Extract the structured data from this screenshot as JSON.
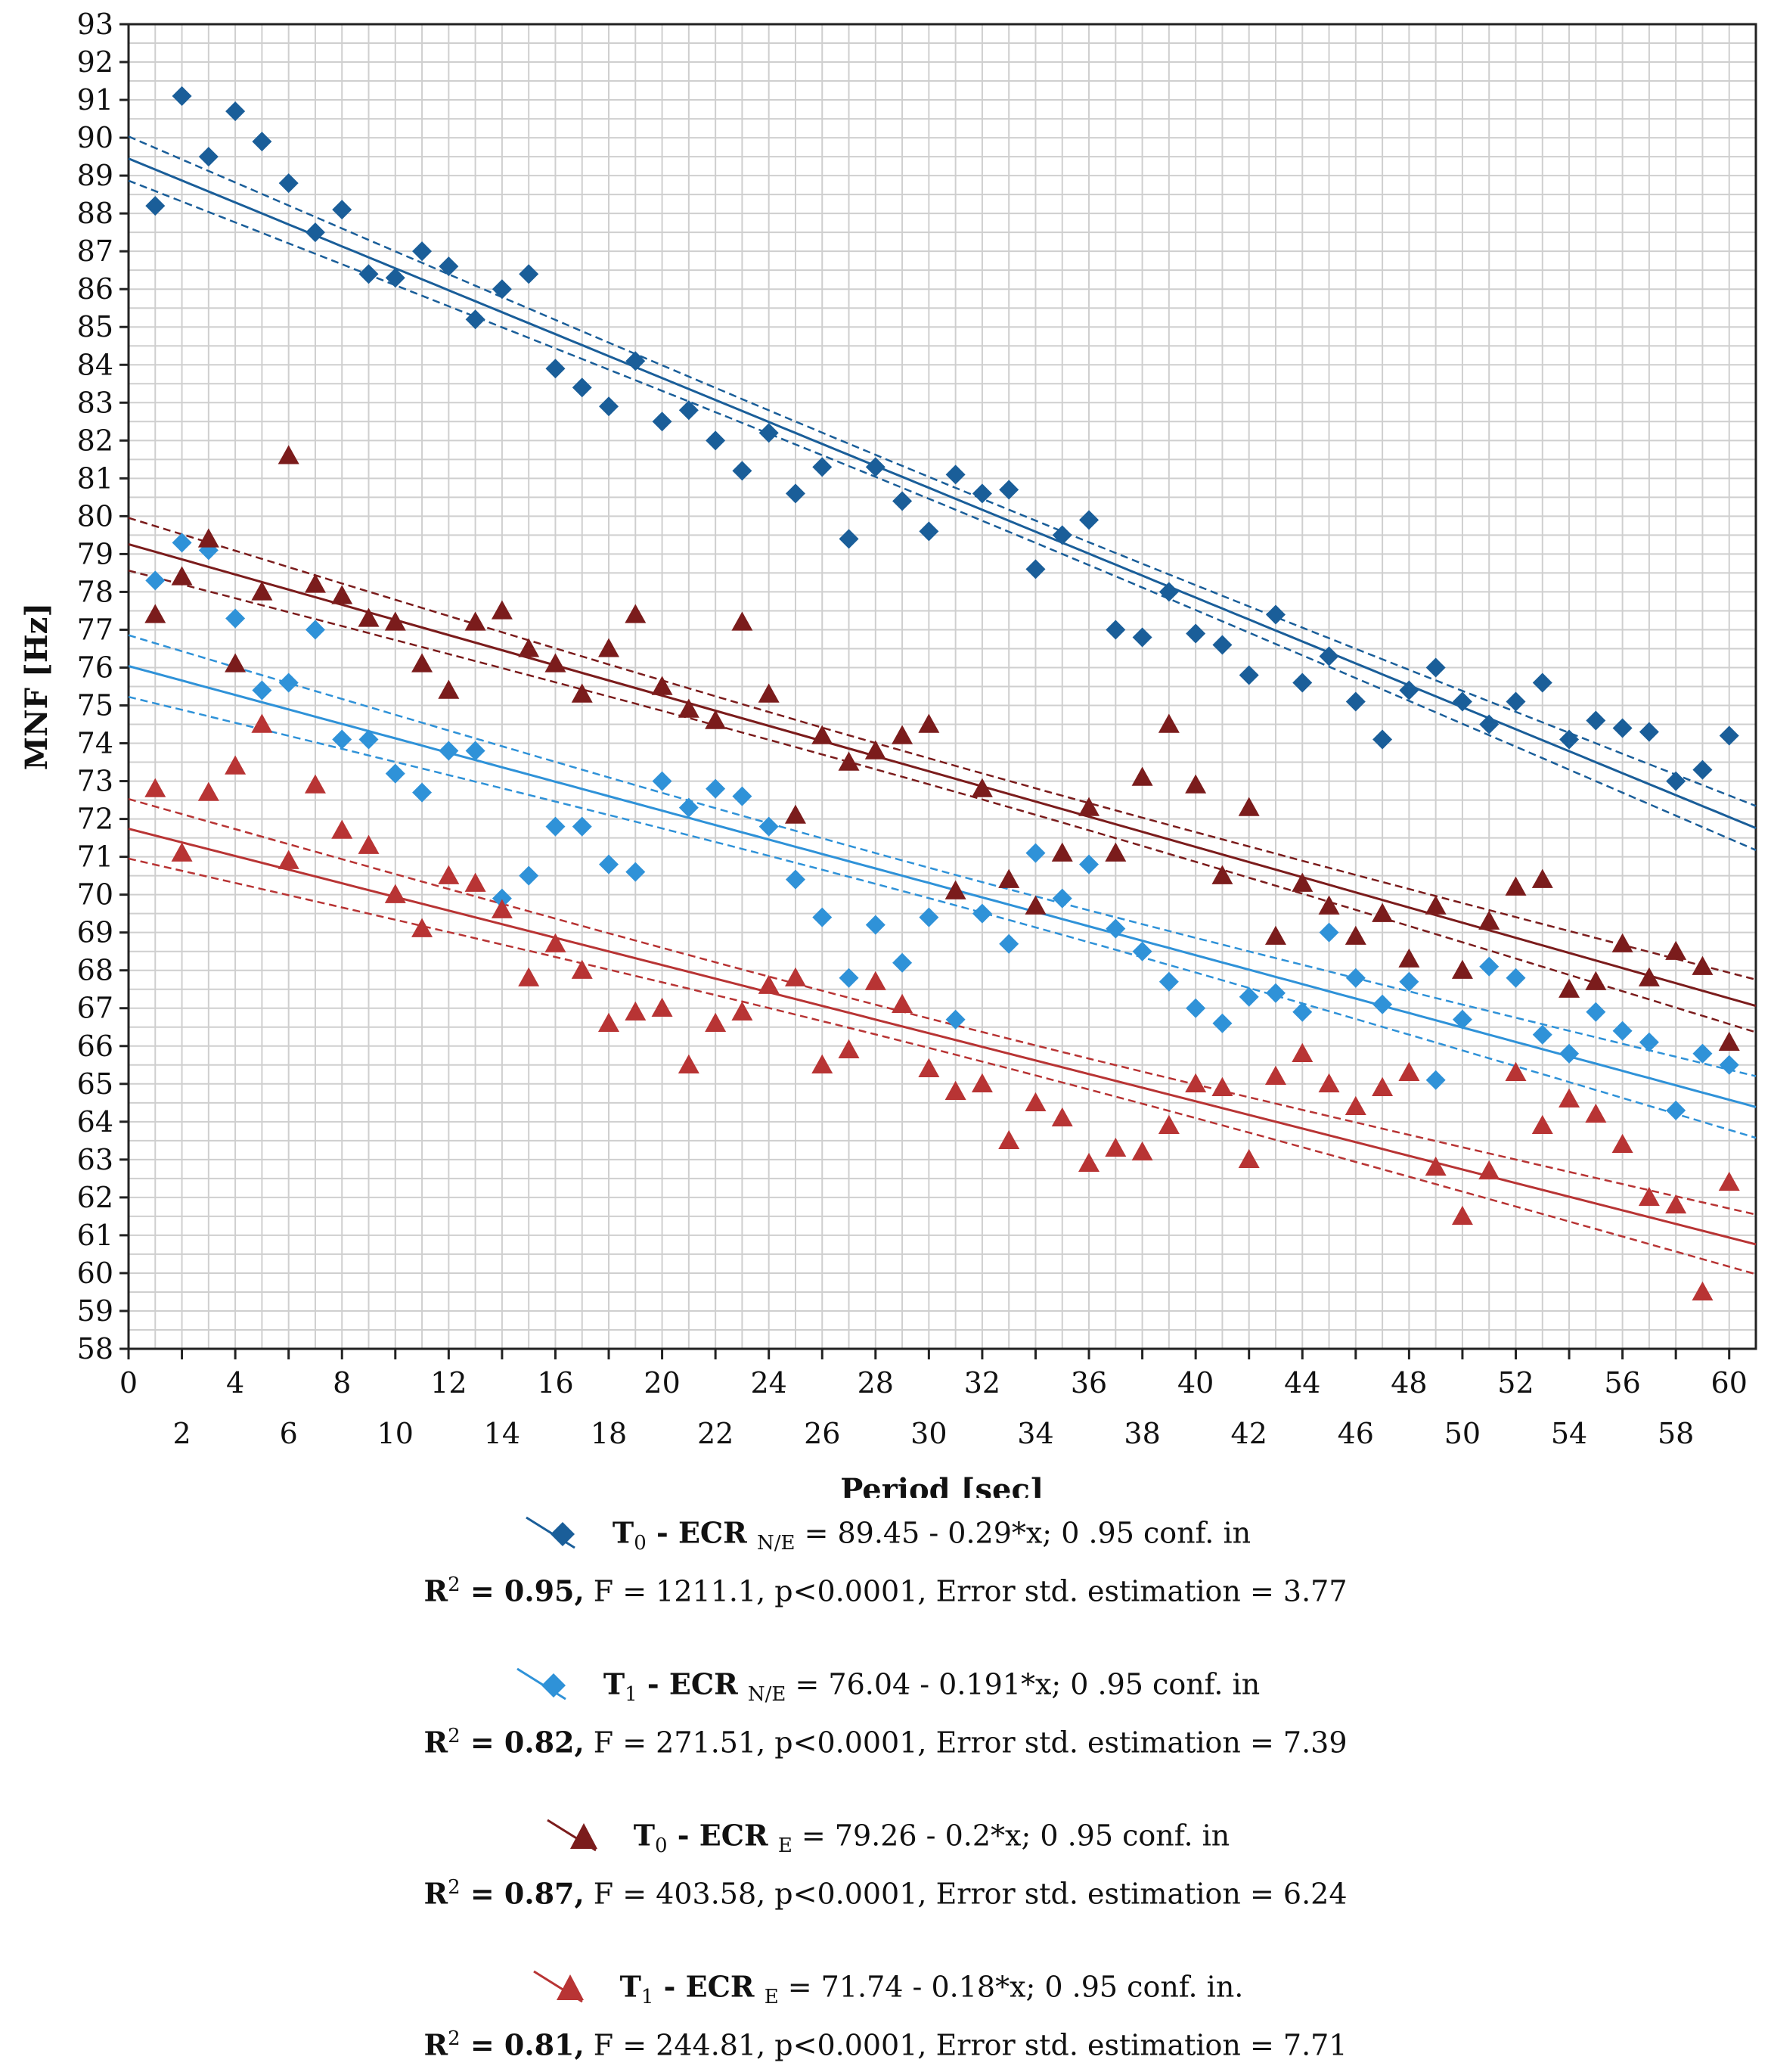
{
  "chart_data": {
    "type": "scatter",
    "xlabel": "Period [sec]",
    "ylabel": "MNF [Hz]",
    "xlim": [
      0,
      61
    ],
    "ylim": [
      58,
      93
    ],
    "x_ticks_top": [
      "0",
      "4",
      "8",
      "12",
      "16",
      "20",
      "24",
      "28",
      "32",
      "36",
      "40",
      "44",
      "48",
      "52",
      "56",
      "60"
    ],
    "x_ticks_bottom": [
      "2",
      "6",
      "10",
      "14",
      "18",
      "22",
      "26",
      "30",
      "34",
      "38",
      "42",
      "46",
      "50",
      "54",
      "58"
    ],
    "y_ticks": [
      "58",
      "59",
      "60",
      "61",
      "62",
      "63",
      "64",
      "65",
      "66",
      "67",
      "68",
      "69",
      "70",
      "71",
      "72",
      "73",
      "74",
      "75",
      "76",
      "77",
      "78",
      "79",
      "80",
      "81",
      "82",
      "83",
      "84",
      "85",
      "86",
      "87",
      "88",
      "89",
      "90",
      "91",
      "92",
      "93"
    ],
    "series": [
      {
        "name": "T0 - ECR N/E",
        "marker": "diamond",
        "color": "#1a5e99",
        "intercept": 89.45,
        "slope": -0.29,
        "x": [
          1,
          2,
          3,
          4,
          5,
          6,
          7,
          8,
          9,
          10,
          11,
          12,
          13,
          14,
          15,
          16,
          17,
          18,
          19,
          20,
          21,
          22,
          23,
          24,
          25,
          26,
          27,
          28,
          29,
          30,
          31,
          32,
          33,
          34,
          35,
          36,
          37,
          38,
          39,
          40,
          41,
          42,
          43,
          44,
          45,
          46,
          47,
          48,
          49,
          50,
          51,
          52,
          53,
          54,
          55,
          56,
          57,
          58,
          59,
          60
        ],
        "values": [
          88.2,
          91.1,
          89.5,
          90.7,
          89.9,
          88.8,
          87.5,
          88.1,
          86.4,
          86.3,
          87.0,
          86.6,
          85.2,
          86.0,
          86.4,
          83.9,
          83.4,
          82.9,
          84.1,
          82.5,
          82.8,
          82.0,
          81.2,
          82.2,
          80.6,
          81.3,
          79.4,
          81.3,
          80.4,
          79.6,
          81.1,
          80.6,
          80.7,
          78.6,
          79.5,
          79.9,
          77.0,
          76.8,
          78.0,
          76.9,
          76.6,
          75.8,
          77.4,
          75.6,
          76.3,
          75.1,
          74.1,
          75.4,
          76.0,
          75.1,
          74.5,
          75.1,
          75.6,
          74.1,
          74.6,
          74.4,
          74.3,
          73.0,
          73.3,
          74.2
        ]
      },
      {
        "name": "T1 - ECR N/E",
        "marker": "diamond",
        "color": "#2f92d8",
        "intercept": 76.04,
        "slope": -0.191,
        "x": [
          1,
          2,
          3,
          4,
          5,
          6,
          7,
          8,
          9,
          10,
          11,
          12,
          13,
          14,
          15,
          16,
          17,
          18,
          19,
          20,
          21,
          22,
          23,
          24,
          25,
          26,
          27,
          28,
          29,
          30,
          31,
          32,
          33,
          34,
          35,
          36,
          37,
          38,
          39,
          40,
          41,
          42,
          43,
          44,
          45,
          46,
          47,
          48,
          49,
          50,
          51,
          52,
          53,
          54,
          55,
          56,
          57,
          58,
          59,
          60
        ],
        "values": [
          78.3,
          79.3,
          79.1,
          77.3,
          75.4,
          75.6,
          77.0,
          74.1,
          74.1,
          73.2,
          72.7,
          73.8,
          73.8,
          69.9,
          70.5,
          71.8,
          71.8,
          70.8,
          70.6,
          73.0,
          72.3,
          72.8,
          72.6,
          71.8,
          70.4,
          69.4,
          67.8,
          69.2,
          68.2,
          69.4,
          66.7,
          69.5,
          68.7,
          71.1,
          69.9,
          70.8,
          69.1,
          68.5,
          67.7,
          67.0,
          66.6,
          67.3,
          67.4,
          66.9,
          69.0,
          67.8,
          67.1,
          67.7,
          65.1,
          66.7,
          68.1,
          67.8,
          66.3,
          65.8,
          66.9,
          66.4,
          66.1,
          64.3,
          65.8,
          65.5
        ]
      },
      {
        "name": "T0 - ECR E",
        "marker": "triangle",
        "color": "#7b1c1c",
        "intercept": 79.26,
        "slope": -0.2,
        "x": [
          1,
          2,
          3,
          4,
          5,
          6,
          7,
          8,
          9,
          10,
          11,
          12,
          13,
          14,
          15,
          16,
          17,
          18,
          19,
          20,
          21,
          22,
          23,
          24,
          25,
          26,
          27,
          28,
          29,
          30,
          31,
          32,
          33,
          34,
          35,
          36,
          37,
          38,
          39,
          40,
          41,
          42,
          43,
          44,
          45,
          46,
          47,
          48,
          49,
          50,
          51,
          52,
          53,
          54,
          55,
          56,
          57,
          58,
          59,
          60
        ],
        "values": [
          77.4,
          78.4,
          79.4,
          76.1,
          78.0,
          81.6,
          78.2,
          77.9,
          77.3,
          77.2,
          76.1,
          75.4,
          77.2,
          77.5,
          76.5,
          76.1,
          75.3,
          76.5,
          77.4,
          75.5,
          74.9,
          74.6,
          77.2,
          75.3,
          72.1,
          74.2,
          73.5,
          73.8,
          74.2,
          74.5,
          70.1,
          72.8,
          70.4,
          69.7,
          71.1,
          72.3,
          71.1,
          73.1,
          74.5,
          72.9,
          70.5,
          72.3,
          68.9,
          70.3,
          69.7,
          68.9,
          69.5,
          68.3,
          69.7,
          68.0,
          69.3,
          70.2,
          70.4,
          67.5,
          67.7,
          68.7,
          67.8,
          68.5,
          68.1,
          66.1
        ]
      },
      {
        "name": "T1 - ECR E",
        "marker": "triangle",
        "color": "#b83434",
        "intercept": 71.74,
        "slope": -0.18,
        "x": [
          1,
          2,
          3,
          4,
          5,
          6,
          7,
          8,
          9,
          10,
          11,
          12,
          13,
          14,
          15,
          16,
          17,
          18,
          19,
          20,
          21,
          22,
          23,
          24,
          25,
          26,
          27,
          28,
          29,
          30,
          31,
          32,
          33,
          34,
          35,
          36,
          37,
          38,
          39,
          40,
          41,
          42,
          43,
          44,
          45,
          46,
          47,
          48,
          49,
          50,
          51,
          52,
          53,
          54,
          55,
          56,
          57,
          58,
          59,
          60
        ],
        "values": [
          72.8,
          71.1,
          72.7,
          73.4,
          74.5,
          70.9,
          72.9,
          71.7,
          71.3,
          70.0,
          69.1,
          70.5,
          70.3,
          69.6,
          67.8,
          68.7,
          68.0,
          66.6,
          66.9,
          67.0,
          65.5,
          66.6,
          66.9,
          67.6,
          67.8,
          65.5,
          65.9,
          67.7,
          67.1,
          65.4,
          64.8,
          65.0,
          63.5,
          64.5,
          64.1,
          62.9,
          63.3,
          63.2,
          63.9,
          65.0,
          64.9,
          63.0,
          65.2,
          65.8,
          65.0,
          64.4,
          64.9,
          65.3,
          62.8,
          61.5,
          62.7,
          65.3,
          63.9,
          64.6,
          64.2,
          63.4,
          62.0,
          61.8,
          59.5,
          62.4
        ]
      }
    ]
  },
  "legend": [
    {
      "symbol": "diamond",
      "color": "#1a5e99",
      "label_main": "T",
      "label_sub": "0",
      "label_dash": " - ECR ",
      "label_group": "N/E",
      "equation": " = 89.45 - 0.29*x; 0 .95 conf. in",
      "stats_r2": "R",
      "stats_r2_sup": "2",
      "stats_r2_val": " = 0.95,",
      "stats_rest": " F = 1211.1, p<0.0001, Error std. estimation = 3.77"
    },
    {
      "symbol": "diamond",
      "color": "#2f92d8",
      "label_main": "T",
      "label_sub": "1",
      "label_dash": " - ECR ",
      "label_group": "N/E",
      "equation": " = 76.04 - 0.191*x; 0 .95 conf. in",
      "stats_r2": "R",
      "stats_r2_sup": "2",
      "stats_r2_val": " = 0.82,",
      "stats_rest": " F = 271.51, p<0.0001, Error std. estimation = 7.39"
    },
    {
      "symbol": "triangle",
      "color": "#7b1c1c",
      "label_main": "T",
      "label_sub": "0",
      "label_dash": " - ECR ",
      "label_group": "E",
      "equation": " = 79.26 - 0.2*x; 0 .95 conf. in",
      "stats_r2": "R",
      "stats_r2_sup": "2",
      "stats_r2_val": " = 0.87,",
      "stats_rest": " F = 403.58, p<0.0001, Error std. estimation = 6.24"
    },
    {
      "symbol": "triangle",
      "color": "#b83434",
      "label_main": "T",
      "label_sub": "1",
      "label_dash": " - ECR ",
      "label_group": "E",
      "equation": " = 71.74 - 0.18*x; 0 .95 conf. in.",
      "stats_r2": "R",
      "stats_r2_sup": "2",
      "stats_r2_val": " = 0.81,",
      "stats_rest": " F = 244.81, p<0.0001, Error std. estimation = 7.71"
    }
  ]
}
